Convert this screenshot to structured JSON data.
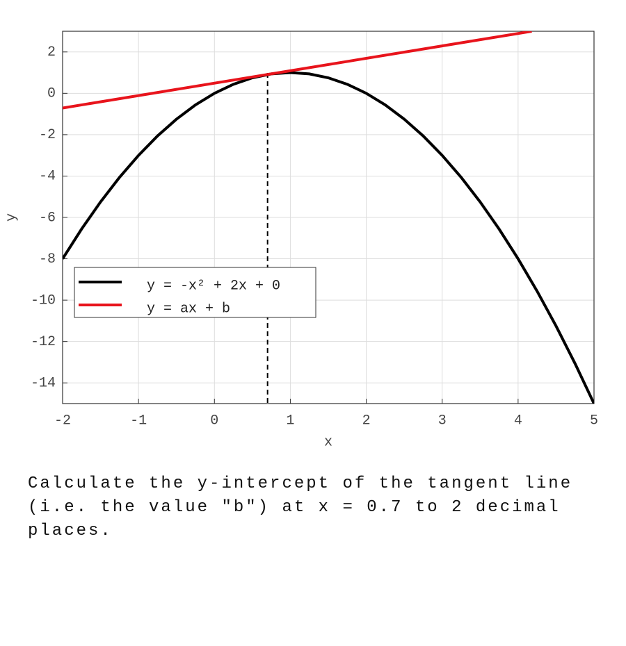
{
  "chart_data": {
    "type": "line",
    "x_label": "x",
    "y_label": "y",
    "xlim": [
      -2,
      5
    ],
    "ylim": [
      -15,
      3
    ],
    "xticks": [
      -2,
      -1,
      0,
      1,
      2,
      3,
      4,
      5
    ],
    "yticks": [
      2,
      0,
      -2,
      -4,
      -6,
      -8,
      -10,
      -12,
      -14
    ],
    "grid": true,
    "legend": "lower left",
    "vline": 0.7,
    "series": [
      {
        "name": "y = -x² + 2x + 0",
        "color": "#000000",
        "x": [
          -2,
          -1.75,
          -1.5,
          -1.25,
          -1,
          -0.75,
          -0.5,
          -0.25,
          0,
          0.25,
          0.5,
          0.75,
          1,
          1.25,
          1.5,
          1.75,
          2,
          2.25,
          2.5,
          2.75,
          3,
          3.25,
          3.5,
          3.75,
          4,
          4.25,
          4.5,
          4.75,
          5
        ],
        "values": [
          -8,
          -6.5625,
          -5.25,
          -4.0625,
          -3,
          -2.0625,
          -1.25,
          -0.5625,
          0,
          0.4375,
          0.75,
          0.9375,
          1,
          0.9375,
          0.75,
          0.4375,
          0,
          -0.5625,
          -1.25,
          -2.0625,
          -3,
          -4.0625,
          -5.25,
          -6.5625,
          -8,
          -9.5625,
          -11.25,
          -13.0625,
          -15
        ]
      },
      {
        "name": "y = ax + b",
        "color": "#e8141c",
        "x": [
          -2,
          4.18
        ],
        "values": [
          -0.71,
          3.0
        ]
      }
    ]
  },
  "question": "Calculate the y-intercept of the tangent line (i.e. the value \"b\") at x = 0.7 to 2 decimal places."
}
